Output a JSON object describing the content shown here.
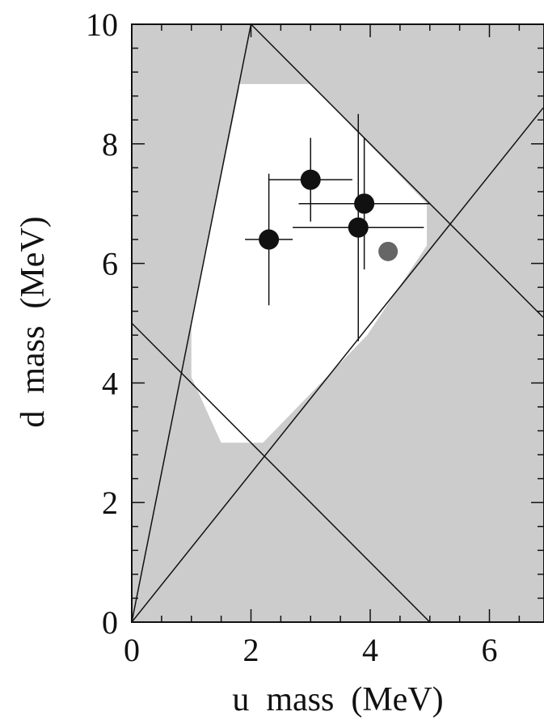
{
  "chart_data": {
    "type": "scatter",
    "xlabel": "u  mass  (MeV)",
    "ylabel": "d  mass  (MeV)",
    "xlim": [
      0,
      6.9
    ],
    "ylim": [
      0,
      10
    ],
    "x_ticks": [
      "0",
      "2",
      "4",
      "6"
    ],
    "x_tick_values": [
      0,
      2,
      4,
      6
    ],
    "y_ticks": [
      "0",
      "2",
      "4",
      "6",
      "8",
      "10"
    ],
    "y_tick_values": [
      0,
      2,
      4,
      6,
      8,
      10
    ],
    "grid": false,
    "colors": {
      "excluded_region": "#cccccc",
      "allowed_region": "#ffffff",
      "points": "#111111",
      "highlight_point": "#666666",
      "lines": "#111111"
    },
    "allowed_region": [
      [
        1.8,
        9.0
      ],
      [
        3.0,
        9.0
      ],
      [
        4.95,
        7.0
      ],
      [
        4.95,
        6.3
      ],
      [
        3.95,
        4.8
      ],
      [
        2.2,
        3.0
      ],
      [
        1.5,
        3.0
      ],
      [
        1.0,
        4.1
      ],
      [
        1.0,
        4.4
      ],
      [
        1.0,
        5.0
      ],
      [
        1.8,
        8.9
      ]
    ],
    "constraint_lines": [
      {
        "points": [
          [
            0,
            0
          ],
          [
            2.0,
            10.0
          ]
        ]
      },
      {
        "points": [
          [
            2.0,
            10.0
          ],
          [
            6.9,
            5.1
          ]
        ]
      },
      {
        "points": [
          [
            0,
            0
          ],
          [
            6.9,
            8.6
          ]
        ]
      },
      {
        "points": [
          [
            0,
            5.0
          ],
          [
            5.0,
            0
          ]
        ]
      }
    ],
    "points": [
      {
        "x": 2.3,
        "y": 6.4,
        "xerr": [
          0.4,
          0.4
        ],
        "yerr": [
          1.1,
          1.1
        ]
      },
      {
        "x": 3.0,
        "y": 7.4,
        "xerr": [
          0.7,
          0.7
        ],
        "yerr": [
          0.7,
          0.7
        ]
      },
      {
        "x": 3.9,
        "y": 7.0,
        "xerr": [
          1.1,
          1.1
        ],
        "yerr": [
          1.1,
          1.1
        ]
      },
      {
        "x": 3.8,
        "y": 6.6,
        "xerr": [
          1.1,
          1.1
        ],
        "yerr": [
          1.9,
          1.9
        ]
      }
    ],
    "highlight_points": [
      {
        "x": 4.3,
        "y": 6.2
      }
    ]
  }
}
